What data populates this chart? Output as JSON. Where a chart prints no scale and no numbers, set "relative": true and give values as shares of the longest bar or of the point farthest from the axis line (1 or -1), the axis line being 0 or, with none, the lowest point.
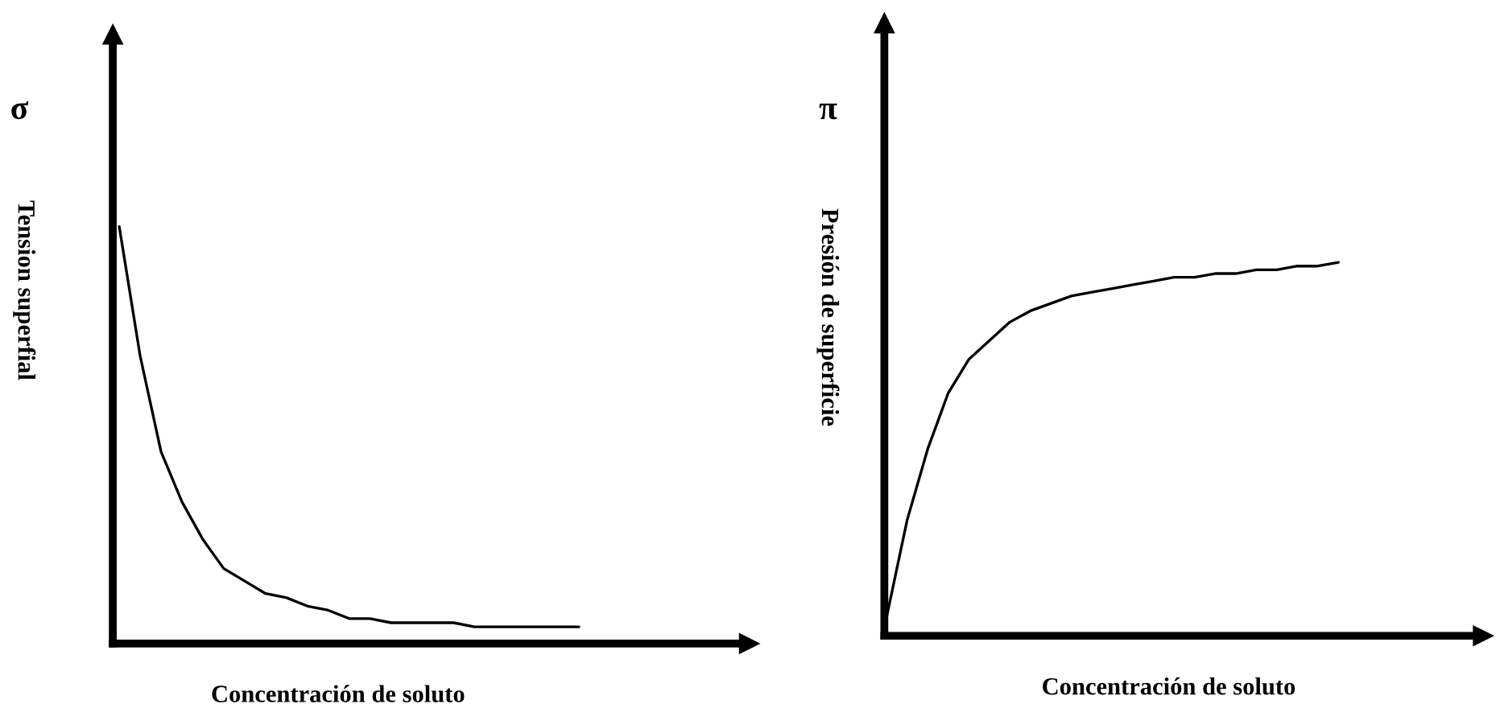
{
  "chart_data": [
    {
      "type": "line",
      "relative": true,
      "xlabel": "Concentración de soluto",
      "ylabel": "Tension superfial",
      "annotations": [
        "σ"
      ],
      "categories": [
        null,
        null,
        null,
        null,
        null,
        null,
        null,
        null,
        null,
        null,
        null,
        null,
        null,
        null,
        null,
        null,
        null,
        null,
        null,
        null,
        null,
        null,
        null
      ],
      "series": [
        {
          "color": "#000000",
          "values": [
            1.0,
            0.69,
            0.46,
            0.34,
            0.25,
            0.18,
            0.15,
            0.12,
            0.11,
            0.09,
            0.08,
            0.06,
            0.06,
            0.05,
            0.05,
            0.05,
            0.05,
            0.04,
            0.04,
            0.04,
            0.04,
            0.04,
            0.04
          ]
        }
      ]
    },
    {
      "type": "line",
      "relative": true,
      "xlabel": "Concentración de soluto",
      "ylabel": "Presión de superficie",
      "annotations": [
        "π"
      ],
      "categories": [
        null,
        null,
        null,
        null,
        null,
        null,
        null,
        null,
        null,
        null,
        null,
        null,
        null,
        null,
        null,
        null,
        null,
        null,
        null,
        null,
        null,
        null,
        null
      ],
      "series": [
        {
          "color": "#000000",
          "values": [
            0.05,
            0.31,
            0.5,
            0.65,
            0.74,
            0.79,
            0.84,
            0.87,
            0.89,
            0.91,
            0.92,
            0.93,
            0.94,
            0.95,
            0.96,
            0.96,
            0.97,
            0.97,
            0.98,
            0.98,
            0.99,
            0.99,
            1.0
          ]
        }
      ]
    }
  ]
}
